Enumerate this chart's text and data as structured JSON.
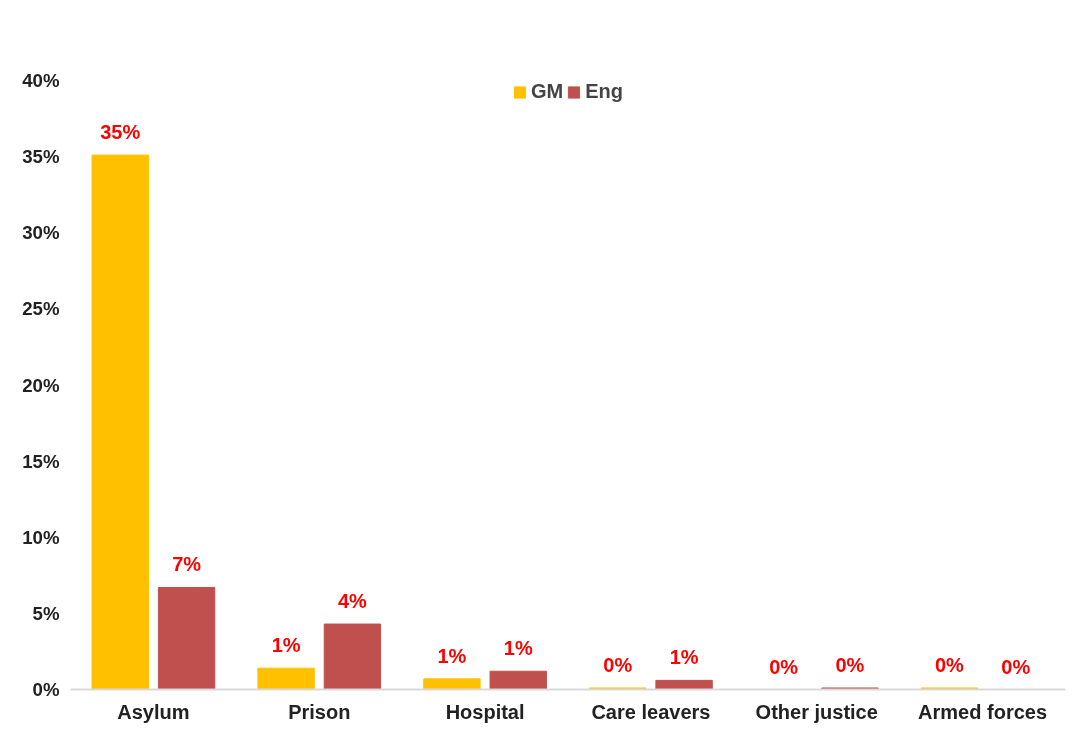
{
  "chart_data": {
    "type": "bar",
    "categories": [
      "Asylum",
      "Prison",
      "Hospital",
      "Care leavers",
      "Other justice",
      "Armed forces"
    ],
    "series": [
      {
        "name": "GM",
        "color": "#ffc000",
        "values": [
          35.1,
          1.4,
          0.7,
          0.1,
          0,
          0.1
        ],
        "value_labels": [
          "35%",
          "1%",
          "1%",
          "0%",
          "0%",
          "0%"
        ]
      },
      {
        "name": "Eng",
        "color": "#c0504d",
        "values": [
          6.7,
          4.3,
          1.2,
          0.6,
          0.1,
          0
        ],
        "value_labels": [
          "7%",
          "4%",
          "1%",
          "1%",
          "0%",
          "0%"
        ]
      }
    ],
    "ylim": [
      0,
      40
    ],
    "yticks": [
      {
        "value": 0,
        "label": "0%"
      },
      {
        "value": 5,
        "label": "5%"
      },
      {
        "value": 10,
        "label": "10%"
      },
      {
        "value": 15,
        "label": "15%"
      },
      {
        "value": 20,
        "label": "20%"
      },
      {
        "value": 25,
        "label": "25%"
      },
      {
        "value": 30,
        "label": "30%"
      },
      {
        "value": 35,
        "label": "35%"
      },
      {
        "value": 40,
        "label": "40%"
      }
    ],
    "grid": false,
    "legend": "top"
  }
}
